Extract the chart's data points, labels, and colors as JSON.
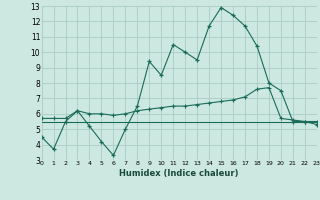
{
  "xlabel": "Humidex (Indice chaleur)",
  "bg_color": "#cce8e0",
  "grid_color": "#aaccc4",
  "line_color": "#1a6b5a",
  "x_min": 0,
  "x_max": 23,
  "y_min": 3,
  "y_max": 13,
  "series1_x": [
    0,
    1,
    2,
    3,
    4,
    5,
    6,
    7,
    8,
    9,
    10,
    11,
    12,
    13,
    14,
    15,
    16,
    17,
    18,
    19,
    20,
    21,
    22,
    23
  ],
  "series1_y": [
    4.5,
    3.7,
    5.5,
    6.2,
    5.2,
    4.2,
    3.3,
    5.0,
    6.5,
    9.4,
    8.5,
    10.5,
    10.0,
    9.5,
    11.7,
    12.9,
    12.4,
    11.7,
    10.4,
    8.0,
    7.5,
    5.5,
    5.5,
    5.3
  ],
  "series2_x": [
    0,
    1,
    2,
    3,
    4,
    5,
    6,
    7,
    8,
    9,
    10,
    11,
    12,
    13,
    14,
    15,
    16,
    17,
    18,
    19,
    20,
    21,
    22,
    23
  ],
  "series2_y": [
    5.7,
    5.7,
    5.7,
    6.2,
    6.0,
    6.0,
    5.9,
    6.0,
    6.2,
    6.3,
    6.4,
    6.5,
    6.5,
    6.6,
    6.7,
    6.8,
    6.9,
    7.1,
    7.6,
    7.7,
    5.7,
    5.6,
    5.5,
    5.5
  ],
  "series3_x": [
    0,
    1,
    2,
    3,
    4,
    5,
    6,
    7,
    8,
    9,
    10,
    11,
    12,
    13,
    14,
    15,
    16,
    17,
    18,
    19,
    20,
    21,
    22,
    23
  ],
  "series3_y": [
    5.5,
    5.5,
    5.5,
    5.5,
    5.5,
    5.5,
    5.5,
    5.5,
    5.5,
    5.5,
    5.5,
    5.5,
    5.5,
    5.5,
    5.5,
    5.5,
    5.5,
    5.5,
    5.5,
    5.5,
    5.5,
    5.5,
    5.5,
    5.5
  ],
  "xtick_labels": [
    "0",
    "1",
    "2",
    "3",
    "4",
    "5",
    "6",
    "7",
    "8",
    "9",
    "10",
    "11",
    "12",
    "13",
    "14",
    "15",
    "16",
    "17",
    "18",
    "19",
    "20",
    "21",
    "22",
    "23"
  ]
}
